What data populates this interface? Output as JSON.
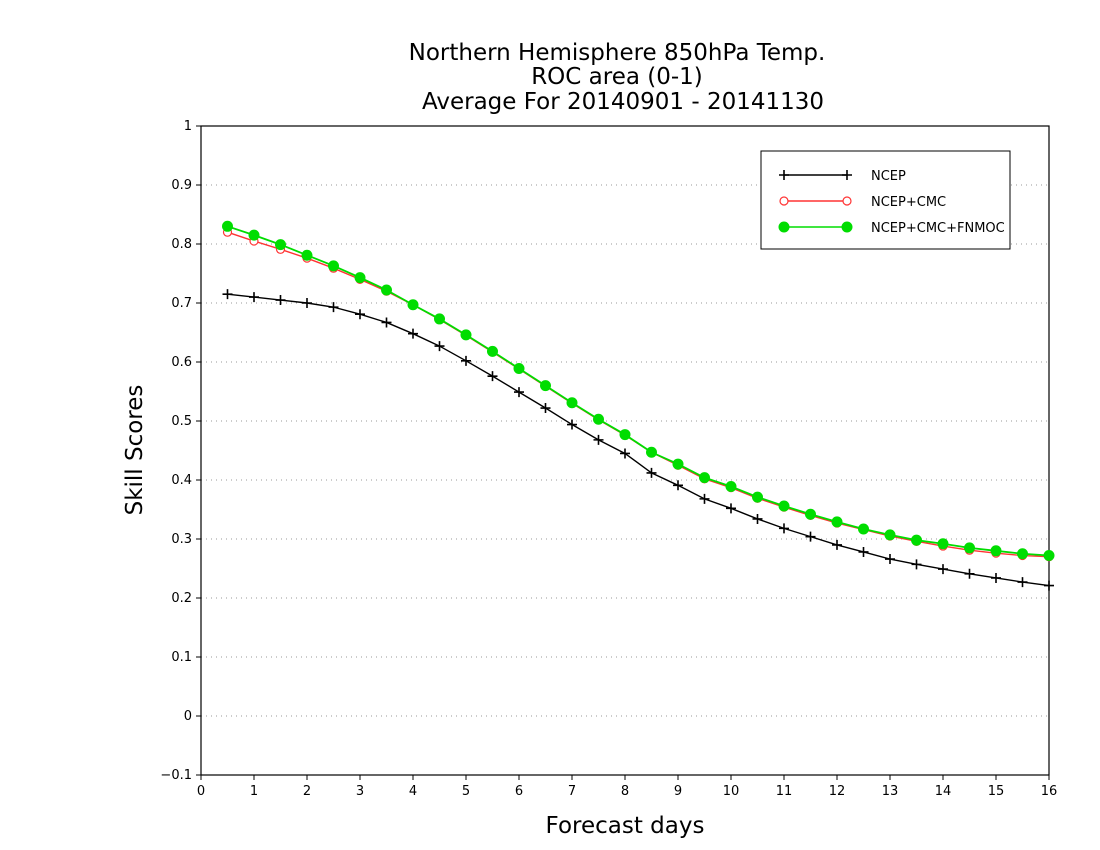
{
  "chart_data": {
    "type": "line",
    "title": [
      "Northern Hemisphere 850hPa Temp.",
      "ROC area (0-1)",
      "Average For 20140901 - 20141130"
    ],
    "xlabel": "Forecast days",
    "ylabel": "Skill Scores",
    "xlim": [
      0,
      16
    ],
    "ylim": [
      -0.1,
      1
    ],
    "xticks": [
      0,
      1,
      2,
      3,
      4,
      5,
      6,
      7,
      8,
      9,
      10,
      11,
      12,
      13,
      14,
      15,
      16
    ],
    "yticks": [
      "−0.1",
      "0",
      "0.1",
      "0.2",
      "0.3",
      "0.4",
      "0.5",
      "0.6",
      "0.7",
      "0.8",
      "0.9",
      "1"
    ],
    "ytick_values": [
      -0.1,
      0,
      0.1,
      0.2,
      0.3,
      0.4,
      0.5,
      0.6,
      0.7,
      0.8,
      0.9,
      1
    ],
    "grid": "horizontal dotted",
    "legend_position": "top-right",
    "x": [
      0.5,
      1,
      1.5,
      2,
      2.5,
      3,
      3.5,
      4,
      4.5,
      5,
      5.5,
      6,
      6.5,
      7,
      7.5,
      8,
      8.5,
      9,
      9.5,
      10,
      10.5,
      11,
      11.5,
      12,
      12.5,
      13,
      13.5,
      14,
      14.5,
      15,
      15.5,
      16
    ],
    "series": [
      {
        "name": "NCEP",
        "color": "#000000",
        "marker": "plus",
        "values": [
          0.715,
          0.71,
          0.705,
          0.7,
          0.693,
          0.681,
          0.667,
          0.648,
          0.627,
          0.602,
          0.576,
          0.549,
          0.522,
          0.494,
          0.468,
          0.445,
          0.412,
          0.391,
          0.368,
          0.352,
          0.334,
          0.318,
          0.304,
          0.29,
          0.278,
          0.266,
          0.257,
          0.249,
          0.241,
          0.234,
          0.227,
          0.221
        ]
      },
      {
        "name": "NCEP+CMC",
        "color": "#ff3333",
        "marker": "open-circle",
        "values": [
          0.82,
          0.805,
          0.791,
          0.776,
          0.759,
          0.74,
          0.72,
          0.697,
          0.672,
          0.645,
          0.617,
          0.588,
          0.559,
          0.53,
          0.502,
          0.476,
          0.447,
          0.425,
          0.402,
          0.387,
          0.369,
          0.354,
          0.34,
          0.327,
          0.316,
          0.305,
          0.296,
          0.288,
          0.281,
          0.276,
          0.272,
          0.27
        ]
      },
      {
        "name": "NCEP+CMC+FNMOC",
        "color": "#00dd00",
        "marker": "filled-circle",
        "values": [
          0.83,
          0.815,
          0.799,
          0.781,
          0.763,
          0.743,
          0.722,
          0.697,
          0.673,
          0.646,
          0.618,
          0.589,
          0.56,
          0.531,
          0.503,
          0.477,
          0.447,
          0.427,
          0.404,
          0.389,
          0.371,
          0.356,
          0.342,
          0.329,
          0.317,
          0.307,
          0.298,
          0.292,
          0.285,
          0.28,
          0.275,
          0.272
        ]
      }
    ]
  }
}
